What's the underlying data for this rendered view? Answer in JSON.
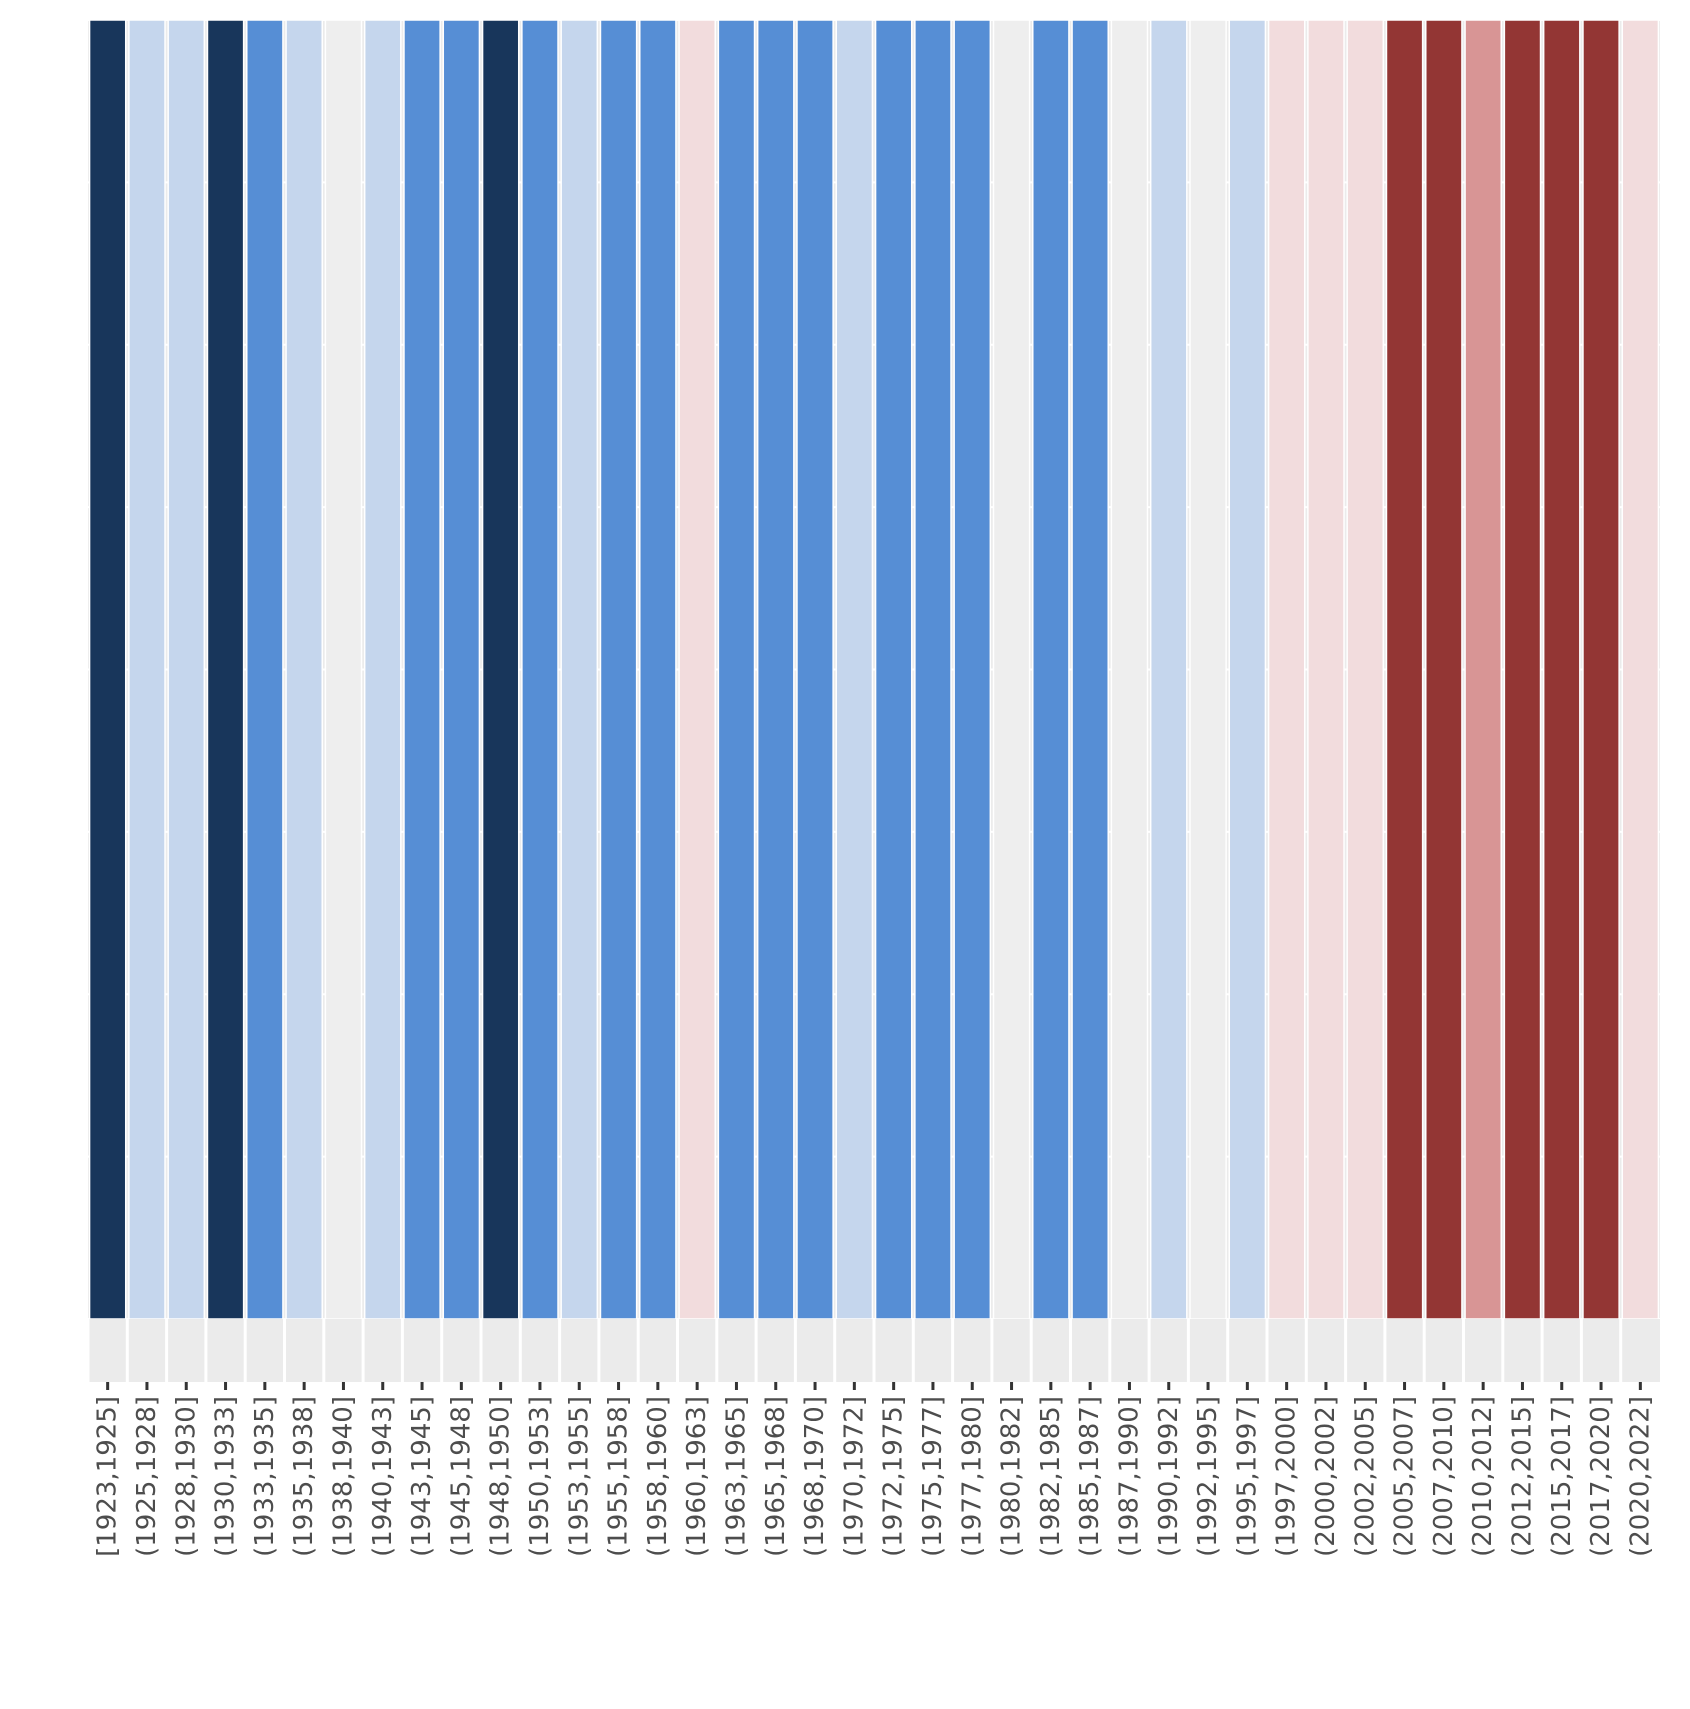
{
  "chart_data": {
    "type": "bar",
    "title": "",
    "xlabel": "",
    "ylabel": "",
    "grid": true,
    "categories": [
      "[1923,1925]",
      "(1925,1928]",
      "(1928,1930]",
      "(1930,1933]",
      "(1933,1935]",
      "(1935,1938]",
      "(1938,1940]",
      "(1940,1943]",
      "(1943,1945]",
      "(1945,1948]",
      "(1948,1950]",
      "(1950,1953]",
      "(1953,1955]",
      "(1955,1958]",
      "(1958,1960]",
      "(1960,1963]",
      "(1963,1965]",
      "(1965,1968]",
      "(1968,1970]",
      "(1970,1972]",
      "(1972,1975]",
      "(1975,1977]",
      "(1977,1980]",
      "(1980,1982]",
      "(1982,1985]",
      "(1985,1987]",
      "(1987,1990]",
      "(1990,1992]",
      "(1992,1995]",
      "(1995,1997]",
      "(1997,2000]",
      "(2000,2002]",
      "(2002,2005]",
      "(2005,2007]",
      "(2007,2010]",
      "(2010,2012]",
      "(2012,2015]",
      "(2015,2017]",
      "(2017,2020]",
      "(2020,2022]"
    ],
    "values": [
      1,
      1,
      1,
      1,
      1,
      1,
      1,
      1,
      1,
      1,
      1,
      1,
      1,
      1,
      1,
      1,
      1,
      1,
      1,
      1,
      1,
      1,
      1,
      1,
      1,
      1,
      1,
      1,
      1,
      1,
      1,
      1,
      1,
      1,
      1,
      1,
      1,
      1,
      1,
      1
    ],
    "colors": [
      "#18365b",
      "#c5d6ed",
      "#c5d6ed",
      "#18365b",
      "#568ed5",
      "#c5d6ed",
      "#eeeeee",
      "#c5d6ed",
      "#568ed5",
      "#568ed5",
      "#18365b",
      "#568ed5",
      "#c5d6ed",
      "#568ed5",
      "#568ed5",
      "#f2dcdd",
      "#568ed5",
      "#568ed5",
      "#568ed5",
      "#c5d6ed",
      "#568ed5",
      "#568ed5",
      "#568ed5",
      "#eeeeee",
      "#568ed5",
      "#568ed5",
      "#eeeeee",
      "#c5d6ed",
      "#eeeeee",
      "#c5d6ed",
      "#f2dcdd",
      "#f2dcdd",
      "#f2dcdd",
      "#933634",
      "#933634",
      "#d89595",
      "#933634",
      "#933634",
      "#933634",
      "#f2dcdd"
    ],
    "ylim": [
      0,
      1
    ]
  }
}
